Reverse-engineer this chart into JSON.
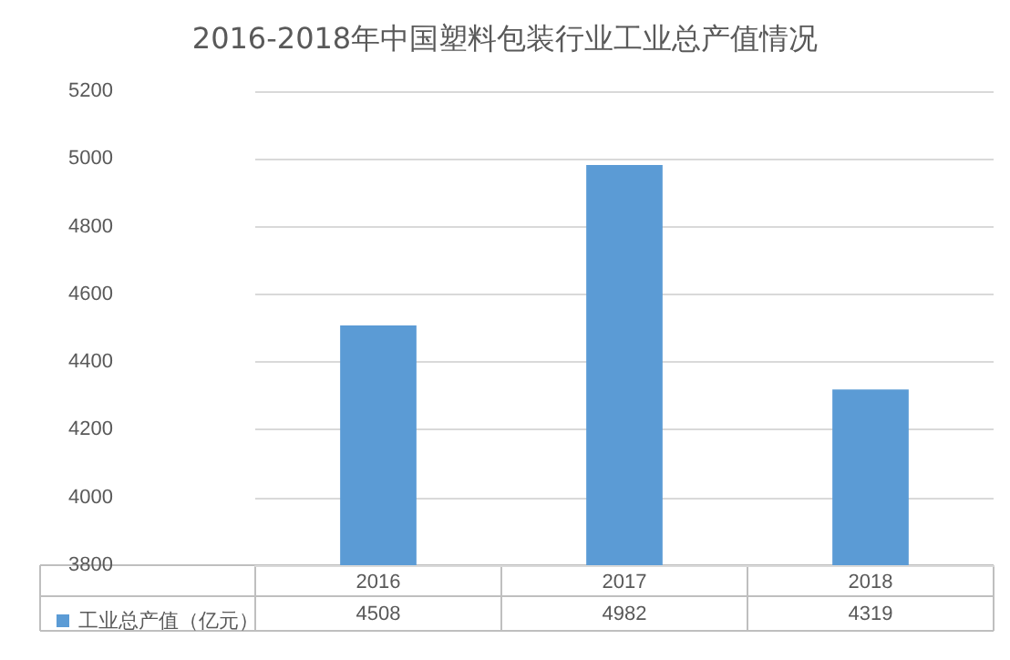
{
  "chart_data": {
    "type": "bar",
    "title": "2016-2018年中国塑料包装行业工业总产值情况",
    "categories": [
      "2016",
      "2017",
      "2018"
    ],
    "series": [
      {
        "name": "工业总产值（亿元）",
        "color": "#5b9bd5",
        "values": [
          4508,
          4982,
          4319
        ]
      }
    ],
    "ylim": [
      3800,
      5200
    ],
    "yticks": [
      3800,
      4000,
      4200,
      4400,
      4600,
      4800,
      5000,
      5200
    ],
    "grid": "y",
    "legend": "bottom left",
    "data_labels": true
  }
}
